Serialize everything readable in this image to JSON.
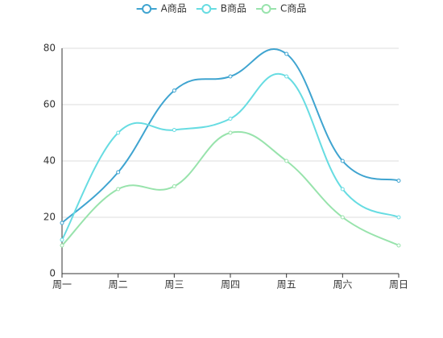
{
  "chart_data": {
    "type": "line",
    "smooth": true,
    "categories": [
      "周一",
      "周二",
      "周三",
      "周四",
      "周五",
      "周六",
      "周日"
    ],
    "series": [
      {
        "name": "A商品",
        "color": "#3fa4d0",
        "values": [
          18,
          36,
          65,
          70,
          78,
          40,
          33
        ]
      },
      {
        "name": "B商品",
        "color": "#67dce2",
        "values": [
          12,
          50,
          51,
          55,
          70,
          30,
          20
        ]
      },
      {
        "name": "C商品",
        "color": "#98e3ac",
        "values": [
          10,
          30,
          31,
          50,
          40,
          20,
          10
        ]
      }
    ],
    "ylim": [
      0,
      80
    ],
    "yticks": [
      0,
      20,
      40,
      60,
      80
    ],
    "grid": true,
    "legend": "top"
  }
}
